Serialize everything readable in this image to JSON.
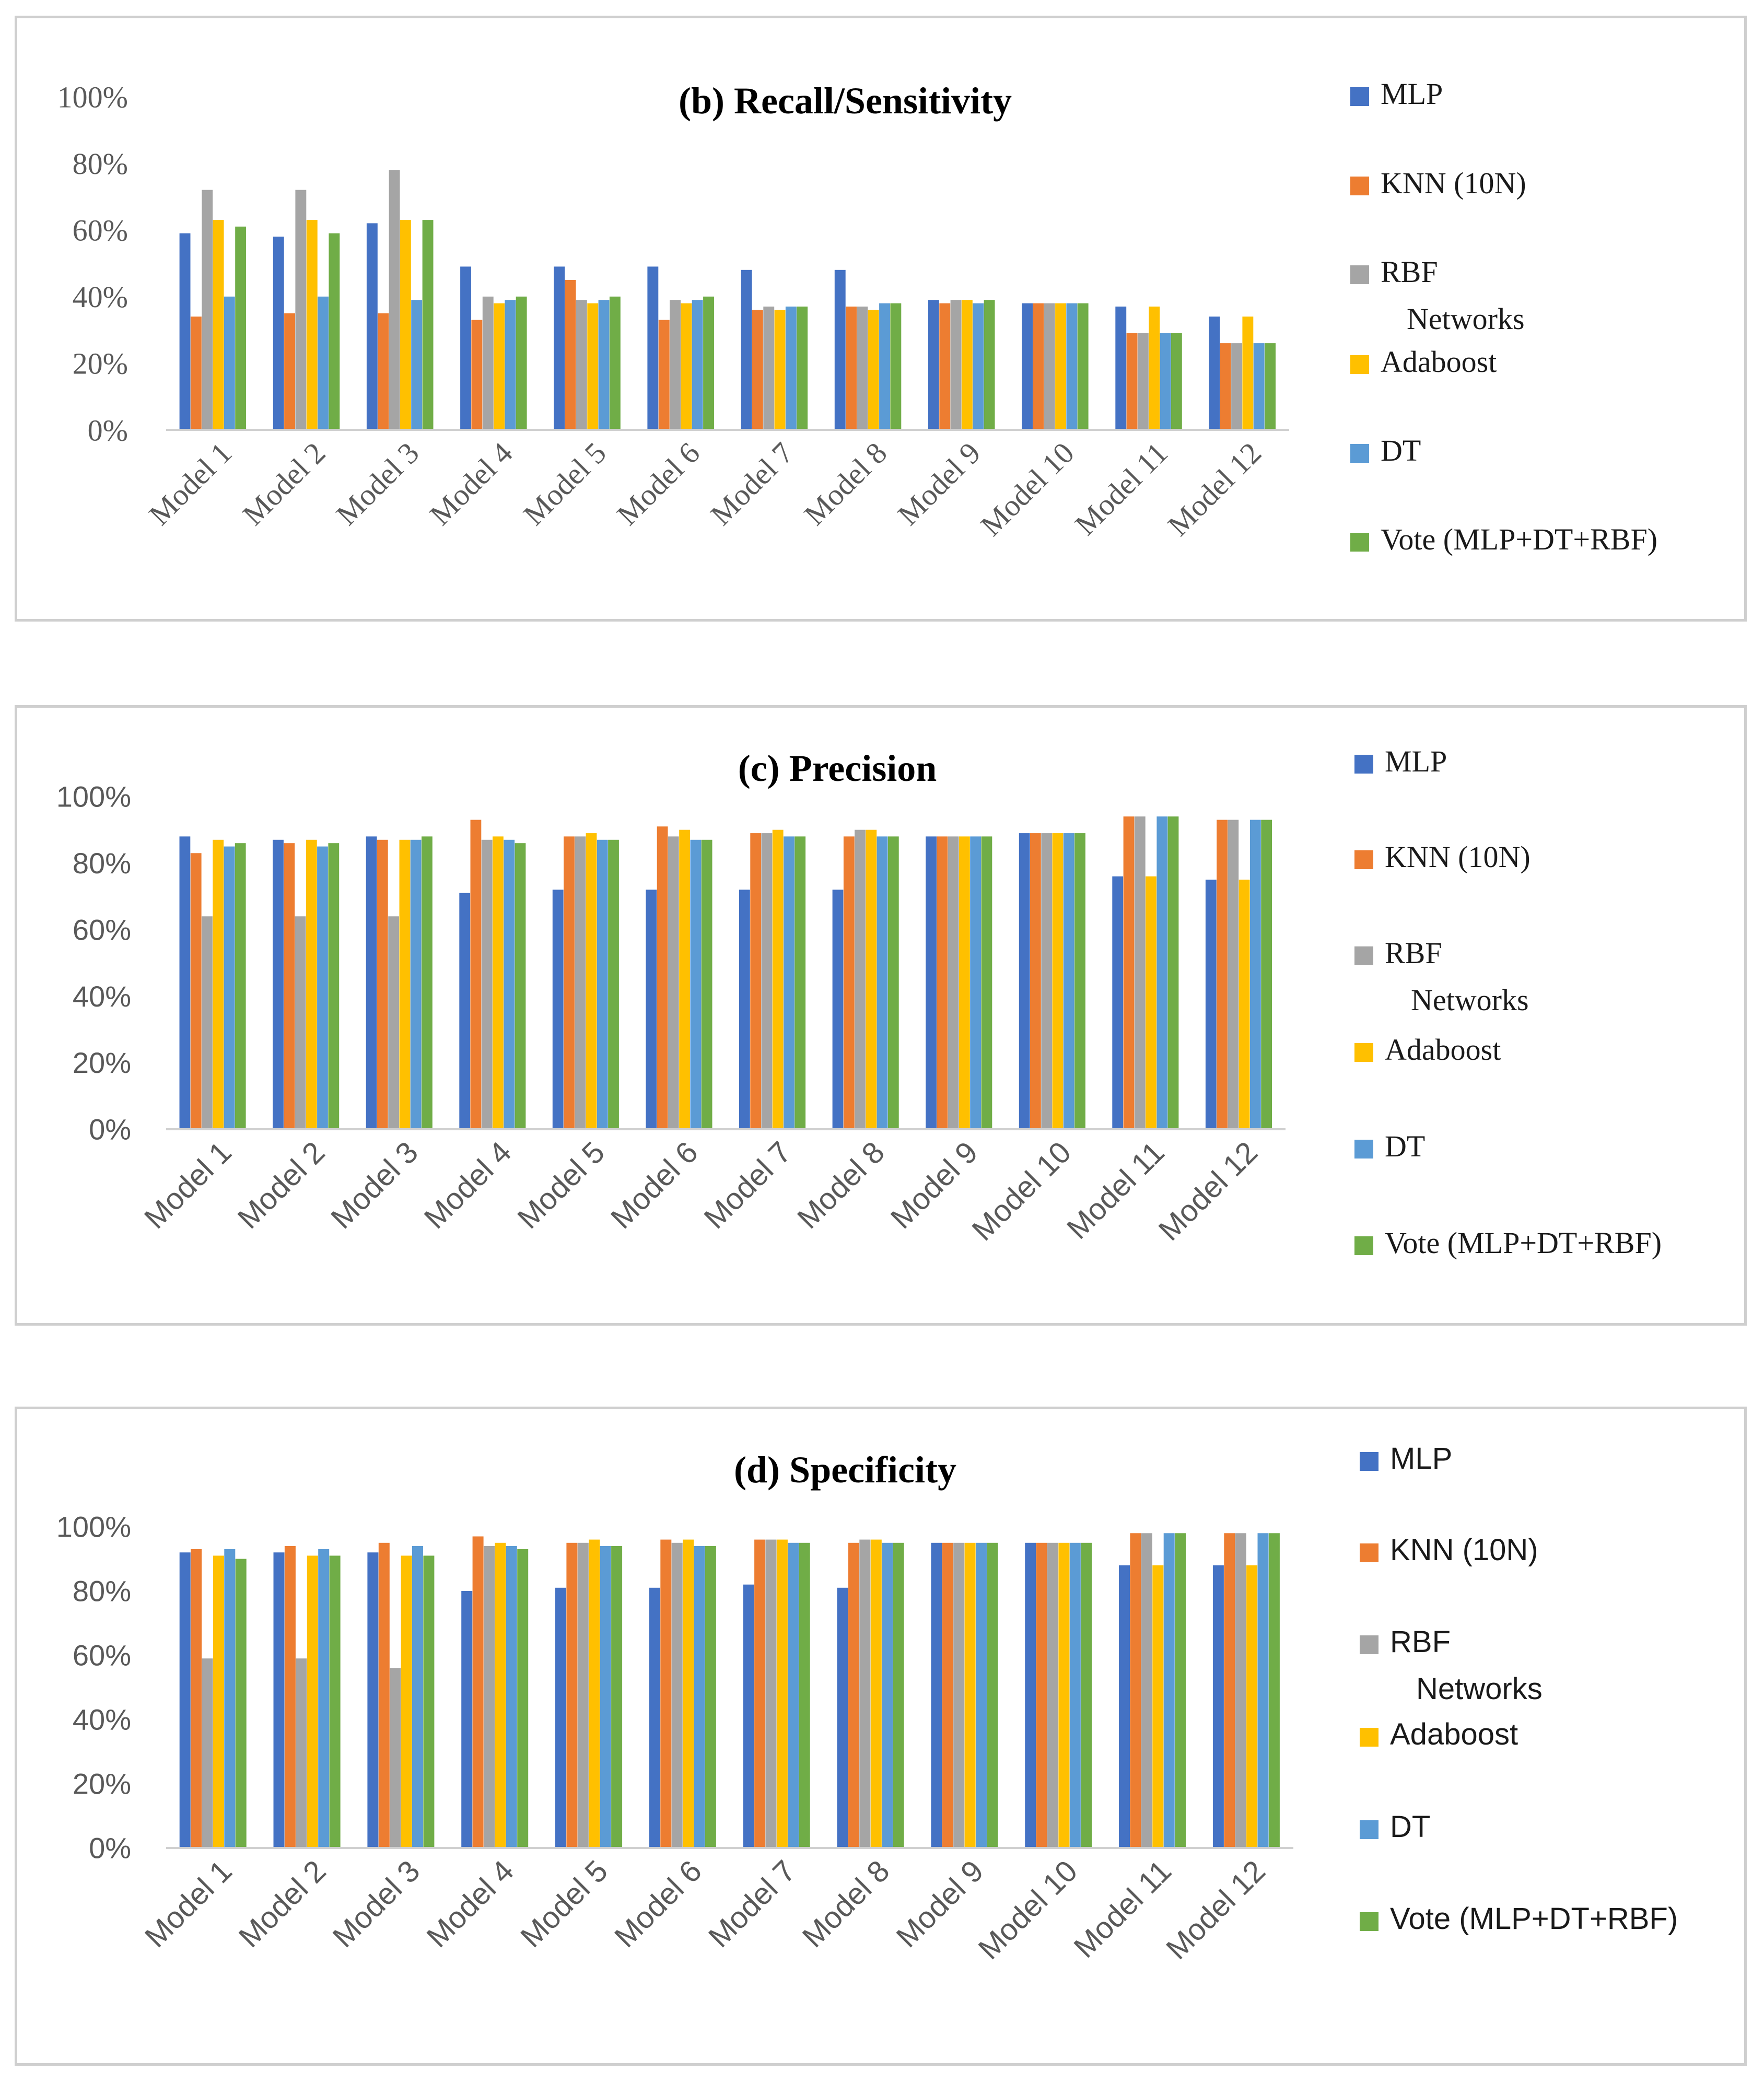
{
  "chart_data": [
    {
      "type": "bar",
      "title": "(b) Recall/Sensitivity",
      "xlabel": "",
      "ylabel": "",
      "ylim": [
        0,
        100
      ],
      "yticks": [
        "0%",
        "20%",
        "40%",
        "60%",
        "80%",
        "100%"
      ],
      "grid": false,
      "legend_position": "right",
      "categories": [
        "Model 1",
        "Model 2",
        "Model 3",
        "Model 4",
        "Model 5",
        "Model 6",
        "Model 7",
        "Model 8",
        "Model 9",
        "Model 10",
        "Model 11",
        "Model 12"
      ],
      "series": [
        {
          "name": "MLP",
          "color": "#4472c4",
          "values": [
            59,
            58,
            62,
            49,
            49,
            49,
            48,
            48,
            39,
            38,
            37,
            34
          ]
        },
        {
          "name": "KNN (10N)",
          "color": "#ed7d31",
          "values": [
            34,
            35,
            35,
            33,
            45,
            33,
            36,
            37,
            38,
            38,
            29,
            26
          ]
        },
        {
          "name": "RBF Networks",
          "color": "#a5a5a5",
          "values": [
            72,
            72,
            78,
            40,
            39,
            39,
            37,
            37,
            39,
            38,
            29,
            26
          ]
        },
        {
          "name": "Adaboost",
          "color": "#ffc000",
          "values": [
            63,
            63,
            63,
            38,
            38,
            38,
            36,
            36,
            39,
            38,
            37,
            34
          ]
        },
        {
          "name": "DT",
          "color": "#5b9bd5",
          "values": [
            40,
            40,
            39,
            39,
            39,
            39,
            37,
            38,
            38,
            38,
            29,
            26
          ]
        },
        {
          "name": "Vote (MLP+DT+RBF)",
          "color": "#70ad47",
          "values": [
            61,
            59,
            63,
            40,
            40,
            40,
            37,
            38,
            39,
            38,
            29,
            26
          ]
        }
      ]
    },
    {
      "type": "bar",
      "title": "(c) Precision",
      "xlabel": "",
      "ylabel": "",
      "ylim": [
        0,
        100
      ],
      "yticks": [
        "0%",
        "20%",
        "40%",
        "60%",
        "80%",
        "100%"
      ],
      "grid": false,
      "legend_position": "right",
      "categories": [
        "Model 1",
        "Model 2",
        "Model 3",
        "Model 4",
        "Model 5",
        "Model 6",
        "Model 7",
        "Model 8",
        "Model 9",
        "Model 10",
        "Model 11",
        "Model 12"
      ],
      "series": [
        {
          "name": "MLP",
          "color": "#4472c4",
          "values": [
            88,
            87,
            88,
            71,
            72,
            72,
            72,
            72,
            88,
            89,
            76,
            75
          ]
        },
        {
          "name": "KNN (10N)",
          "color": "#ed7d31",
          "values": [
            83,
            86,
            87,
            93,
            88,
            91,
            89,
            88,
            88,
            89,
            94,
            93
          ]
        },
        {
          "name": "RBF Networks",
          "color": "#a5a5a5",
          "values": [
            64,
            64,
            64,
            87,
            88,
            88,
            89,
            90,
            88,
            89,
            94,
            93
          ]
        },
        {
          "name": "Adaboost",
          "color": "#ffc000",
          "values": [
            87,
            87,
            87,
            88,
            89,
            90,
            90,
            90,
            88,
            89,
            76,
            75
          ]
        },
        {
          "name": "DT",
          "color": "#5b9bd5",
          "values": [
            85,
            85,
            87,
            87,
            87,
            87,
            88,
            88,
            88,
            89,
            94,
            93
          ]
        },
        {
          "name": "Vote (MLP+DT+RBF)",
          "color": "#70ad47",
          "values": [
            86,
            86,
            88,
            86,
            87,
            87,
            88,
            88,
            88,
            89,
            94,
            93
          ]
        }
      ]
    },
    {
      "type": "bar",
      "title": "(d) Specificity",
      "xlabel": "",
      "ylabel": "",
      "ylim": [
        0,
        100
      ],
      "yticks": [
        "0%",
        "20%",
        "40%",
        "60%",
        "80%",
        "100%"
      ],
      "grid": false,
      "legend_position": "right",
      "categories": [
        "Model 1",
        "Model 2",
        "Model 3",
        "Model 4",
        "Model 5",
        "Model 6",
        "Model 7",
        "Model 8",
        "Model 9",
        "Model 10",
        "Model 11",
        "Model 12"
      ],
      "series": [
        {
          "name": "MLP",
          "color": "#4472c4",
          "values": [
            92,
            92,
            92,
            80,
            81,
            81,
            82,
            81,
            95,
            95,
            88,
            88
          ]
        },
        {
          "name": "KNN (10N)",
          "color": "#ed7d31",
          "values": [
            93,
            94,
            95,
            97,
            95,
            96,
            96,
            95,
            95,
            95,
            98,
            98
          ]
        },
        {
          "name": "RBF Networks",
          "color": "#a5a5a5",
          "values": [
            59,
            59,
            56,
            94,
            95,
            95,
            96,
            96,
            95,
            95,
            98,
            98
          ]
        },
        {
          "name": "Adaboost",
          "color": "#ffc000",
          "values": [
            91,
            91,
            91,
            95,
            96,
            96,
            96,
            96,
            95,
            95,
            88,
            88
          ]
        },
        {
          "name": "DT",
          "color": "#5b9bd5",
          "values": [
            93,
            93,
            94,
            94,
            94,
            94,
            95,
            95,
            95,
            95,
            98,
            98
          ]
        },
        {
          "name": "Vote (MLP+DT+RBF)",
          "color": "#70ad47",
          "values": [
            90,
            91,
            91,
            93,
            94,
            94,
            95,
            95,
            95,
            95,
            98,
            98
          ]
        }
      ]
    }
  ]
}
